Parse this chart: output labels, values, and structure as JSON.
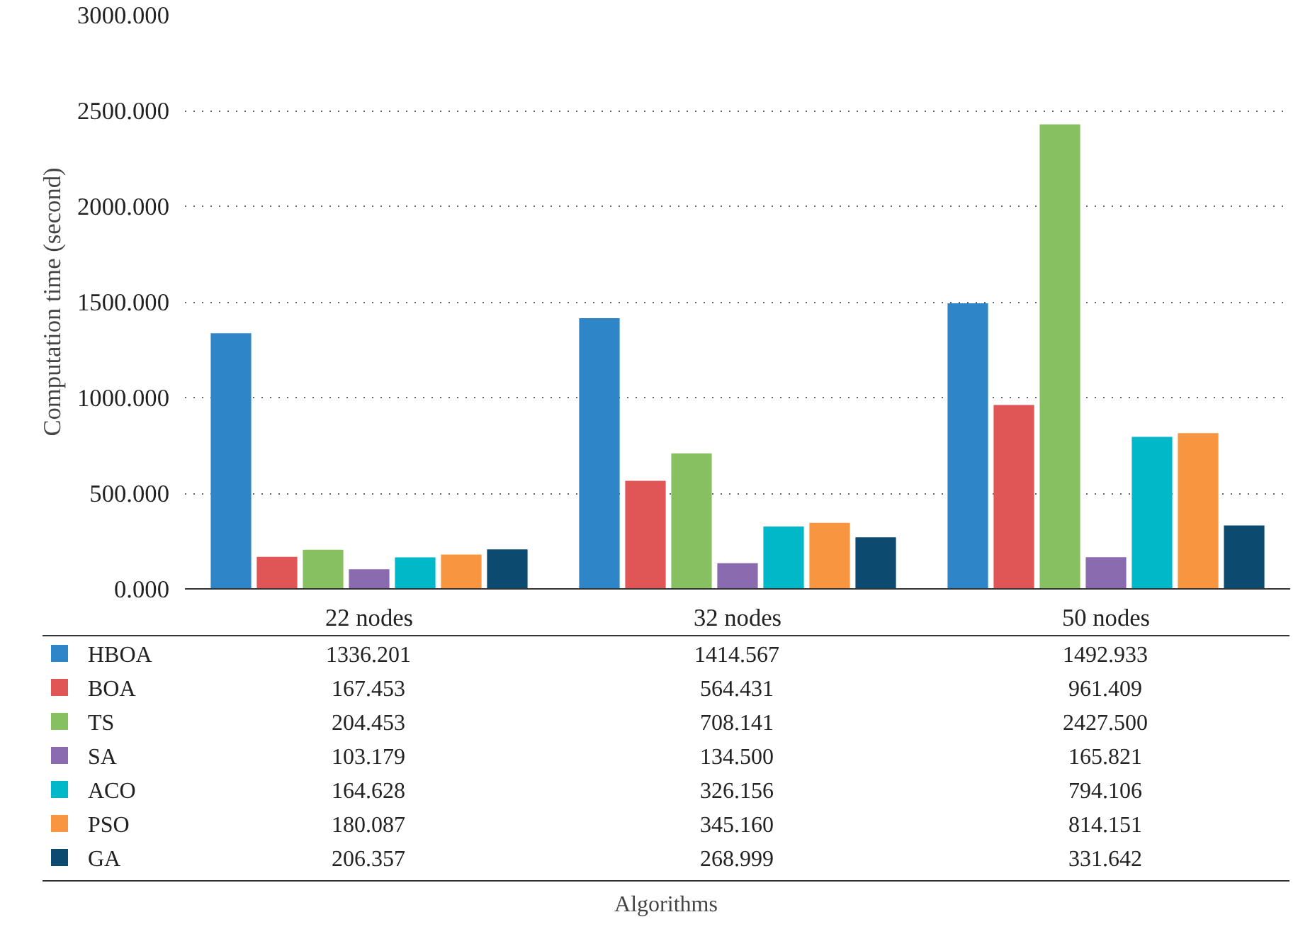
{
  "chart_data": {
    "type": "bar",
    "ylabel": "Computation time (second)",
    "annotations": [
      "Algorithms"
    ],
    "categories": [
      "22 nodes",
      "32 nodes",
      "50 nodes"
    ],
    "series": [
      {
        "name": "HBOA",
        "color": "#2e86c8",
        "values": [
          1336.201,
          1414.567,
          1492.933
        ],
        "value_labels": [
          "1336.201",
          "1414.567",
          "1492.933"
        ]
      },
      {
        "name": "BOA",
        "color": "#e05555",
        "values": [
          167.453,
          564.431,
          961.409
        ],
        "value_labels": [
          "167.453",
          "564.431",
          "961.409"
        ]
      },
      {
        "name": "TS",
        "color": "#86c060",
        "values": [
          204.453,
          708.141,
          2427.5
        ],
        "value_labels": [
          "204.453",
          "708.141",
          "2427.500"
        ]
      },
      {
        "name": "SA",
        "color": "#8b6bb0",
        "values": [
          103.179,
          134.5,
          165.821
        ],
        "value_labels": [
          "103.179",
          "134.500",
          "165.821"
        ]
      },
      {
        "name": "ACO",
        "color": "#00b8c8",
        "values": [
          164.628,
          326.156,
          794.106
        ],
        "value_labels": [
          "164.628",
          "326.156",
          "794.106"
        ]
      },
      {
        "name": "PSO",
        "color": "#f79540",
        "values": [
          180.087,
          345.16,
          814.151
        ],
        "value_labels": [
          "180.087",
          "345.160",
          "814.151"
        ]
      },
      {
        "name": "GA",
        "color": "#0d4a70",
        "values": [
          206.357,
          268.999,
          331.642
        ],
        "value_labels": [
          "206.357",
          "268.999",
          "331.642"
        ]
      }
    ],
    "ylim": [
      0,
      3000
    ],
    "yticks": [
      {
        "value": 0,
        "label": "0.000"
      },
      {
        "value": 500,
        "label": "500.000"
      },
      {
        "value": 1000,
        "label": "1000.000"
      },
      {
        "value": 1500,
        "label": "1500.000"
      },
      {
        "value": 2000,
        "label": "2000.000"
      },
      {
        "value": 2500,
        "label": "2500.000"
      },
      {
        "value": 3000,
        "label": "3000.000"
      }
    ],
    "grid": "y",
    "legend": "bottom"
  }
}
